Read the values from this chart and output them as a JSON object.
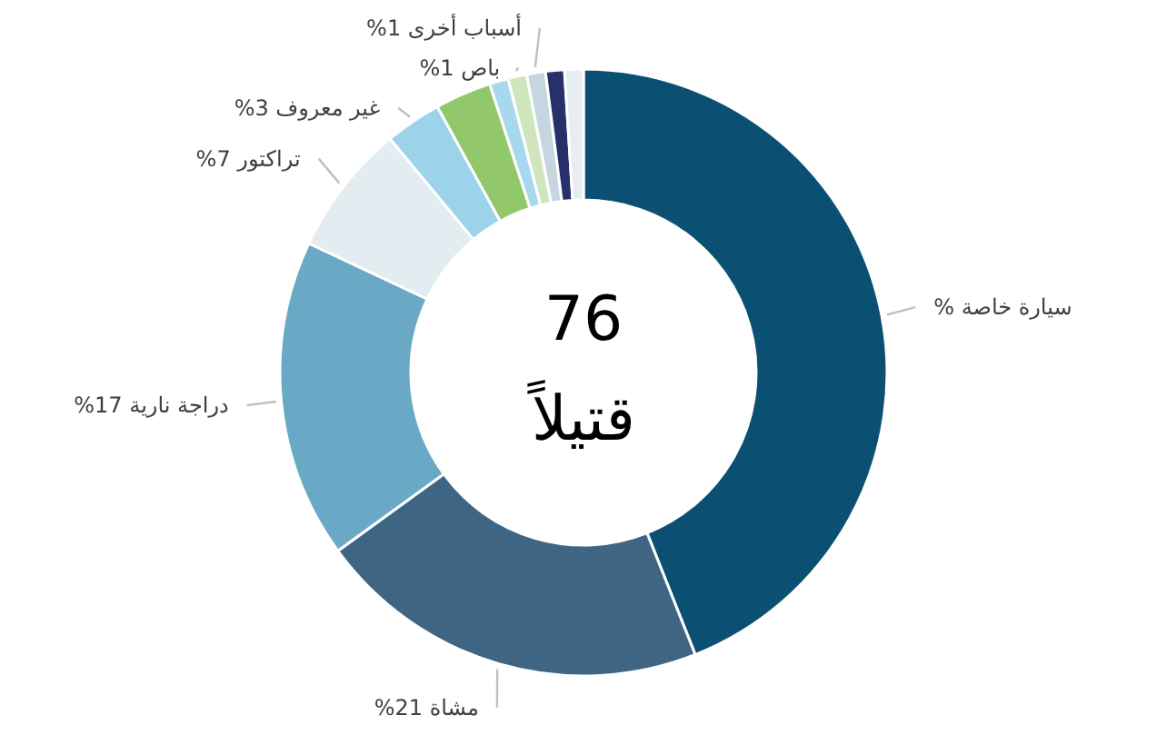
{
  "chart_data": {
    "type": "donut",
    "categories": [
      "% سيارة خاصة",
      "%21 مشاة",
      "%17 دراجة نارية",
      "%7 تراكتور",
      "%3 غير معروف",
      null,
      null,
      "%1 باص",
      "%1 أسباب أخرى",
      null,
      null
    ],
    "values": [
      44,
      21,
      17,
      7,
      3,
      3,
      1,
      1,
      1,
      1,
      1
    ],
    "colors": [
      "#0b5073",
      "#3f6585",
      "#6aa9c6",
      "#e3ecf0",
      "#9dd3ea",
      "#92c86a",
      "#a8d8ee",
      "#cfe6bd",
      "#c6d5e0",
      "#27306a",
      "#e6eef2"
    ],
    "annotations": [
      "76",
      "قتيلاً"
    ]
  }
}
